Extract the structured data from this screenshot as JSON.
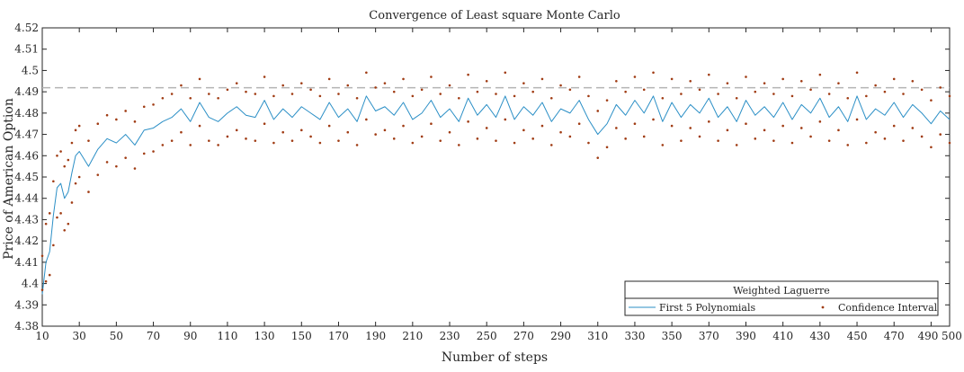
{
  "chart_data": {
    "type": "line",
    "title": "Convergence of Least square Monte Carlo",
    "xlabel": "Number of steps",
    "ylabel": "Price of American Option",
    "xlim": [
      10,
      500
    ],
    "ylim": [
      4.38,
      4.52
    ],
    "xticks": [
      10,
      30,
      50,
      70,
      90,
      110,
      130,
      150,
      170,
      190,
      210,
      230,
      250,
      270,
      290,
      310,
      330,
      350,
      370,
      390,
      410,
      430,
      450,
      470,
      490,
      500
    ],
    "yticks": [
      4.38,
      4.39,
      4.4,
      4.41,
      4.42,
      4.43,
      4.44,
      4.45,
      4.46,
      4.47,
      4.48,
      4.49,
      4.5,
      4.51,
      4.52
    ],
    "grid": false,
    "reference_line": {
      "y": 4.4919,
      "style": "dashed",
      "color": "#b4b4b4"
    },
    "legend": {
      "title": "Weighted Laguerre",
      "placement": "bottom-right",
      "entries": [
        "First 5 Polynomials",
        "Confidence Interval"
      ]
    },
    "series": [
      {
        "name": "First 5 Polynomials",
        "style": "line",
        "color": "#2b8fc6",
        "x": [
          10,
          12,
          14,
          16,
          18,
          20,
          22,
          24,
          26,
          28,
          30,
          35,
          40,
          45,
          50,
          55,
          60,
          65,
          70,
          75,
          80,
          85,
          90,
          95,
          100,
          105,
          110,
          115,
          120,
          125,
          130,
          135,
          140,
          145,
          150,
          155,
          160,
          165,
          170,
          175,
          180,
          185,
          190,
          195,
          200,
          205,
          210,
          215,
          220,
          225,
          230,
          235,
          240,
          245,
          250,
          255,
          260,
          265,
          270,
          275,
          280,
          285,
          290,
          295,
          300,
          305,
          310,
          315,
          320,
          325,
          330,
          335,
          340,
          345,
          350,
          355,
          360,
          365,
          370,
          375,
          380,
          385,
          390,
          395,
          400,
          405,
          410,
          415,
          420,
          425,
          430,
          435,
          440,
          445,
          450,
          455,
          460,
          465,
          470,
          475,
          480,
          485,
          490,
          495,
          500
        ],
        "y": [
          4.395,
          4.41,
          4.415,
          4.432,
          4.445,
          4.447,
          4.44,
          4.443,
          4.452,
          4.46,
          4.462,
          4.455,
          4.463,
          4.468,
          4.466,
          4.47,
          4.465,
          4.472,
          4.473,
          4.476,
          4.478,
          4.482,
          4.476,
          4.485,
          4.478,
          4.476,
          4.48,
          4.483,
          4.479,
          4.478,
          4.486,
          4.477,
          4.482,
          4.478,
          4.483,
          4.48,
          4.477,
          4.485,
          4.478,
          4.482,
          4.476,
          4.488,
          4.481,
          4.483,
          4.479,
          4.485,
          4.477,
          4.48,
          4.486,
          4.478,
          4.482,
          4.476,
          4.487,
          4.479,
          4.484,
          4.478,
          4.488,
          4.477,
          4.483,
          4.479,
          4.485,
          4.476,
          4.482,
          4.48,
          4.486,
          4.477,
          4.47,
          4.475,
          4.484,
          4.479,
          4.486,
          4.48,
          4.488,
          4.476,
          4.485,
          4.478,
          4.484,
          4.48,
          4.487,
          4.478,
          4.483,
          4.476,
          4.486,
          4.479,
          4.483,
          4.478,
          4.485,
          4.477,
          4.484,
          4.48,
          4.487,
          4.478,
          4.483,
          4.476,
          4.488,
          4.477,
          4.482,
          4.479,
          4.485,
          4.478,
          4.484,
          4.48,
          4.475,
          4.481,
          4.477
        ]
      },
      {
        "name": "Confidence Interval",
        "style": "markers",
        "color": "#a03c14",
        "x": [
          10,
          12,
          14,
          16,
          18,
          20,
          22,
          24,
          26,
          28,
          30,
          35,
          40,
          45,
          50,
          55,
          60,
          65,
          70,
          75,
          80,
          85,
          90,
          95,
          100,
          105,
          110,
          115,
          120,
          125,
          130,
          135,
          140,
          145,
          150,
          155,
          160,
          165,
          170,
          175,
          180,
          185,
          190,
          195,
          200,
          205,
          210,
          215,
          220,
          225,
          230,
          235,
          240,
          245,
          250,
          255,
          260,
          265,
          270,
          275,
          280,
          285,
          290,
          295,
          300,
          305,
          310,
          315,
          320,
          325,
          330,
          335,
          340,
          345,
          350,
          355,
          360,
          365,
          370,
          375,
          380,
          385,
          390,
          395,
          400,
          405,
          410,
          415,
          420,
          425,
          430,
          435,
          440,
          445,
          450,
          455,
          460,
          465,
          470,
          475,
          480,
          485,
          490,
          495,
          500,
          10,
          12,
          14,
          16,
          18,
          20,
          22,
          24,
          26,
          28,
          30,
          35,
          40,
          45,
          50,
          55,
          60,
          65,
          70,
          75,
          80,
          85,
          90,
          95,
          100,
          105,
          110,
          115,
          120,
          125,
          130,
          135,
          140,
          145,
          150,
          155,
          160,
          165,
          170,
          175,
          180,
          185,
          190,
          195,
          200,
          205,
          210,
          215,
          220,
          225,
          230,
          235,
          240,
          245,
          250,
          255,
          260,
          265,
          270,
          275,
          280,
          285,
          290,
          295,
          300,
          305,
          310,
          315,
          320,
          325,
          330,
          335,
          340,
          345,
          350,
          355,
          360,
          365,
          370,
          375,
          380,
          385,
          390,
          395,
          400,
          405,
          410,
          415,
          420,
          425,
          430,
          435,
          440,
          445,
          450,
          455,
          460,
          465,
          470,
          475,
          480,
          485,
          490,
          495,
          500
        ],
        "y": [
          4.413,
          4.428,
          4.433,
          4.448,
          4.46,
          4.462,
          4.455,
          4.458,
          4.466,
          4.472,
          4.474,
          4.467,
          4.475,
          4.479,
          4.477,
          4.481,
          4.476,
          4.483,
          4.484,
          4.487,
          4.489,
          4.493,
          4.487,
          4.496,
          4.489,
          4.487,
          4.491,
          4.494,
          4.49,
          4.489,
          4.497,
          4.488,
          4.493,
          4.489,
          4.494,
          4.491,
          4.488,
          4.496,
          4.489,
          4.493,
          4.487,
          4.499,
          4.492,
          4.494,
          4.49,
          4.496,
          4.488,
          4.491,
          4.497,
          4.489,
          4.493,
          4.487,
          4.498,
          4.49,
          4.495,
          4.489,
          4.499,
          4.488,
          4.494,
          4.49,
          4.496,
          4.487,
          4.493,
          4.491,
          4.497,
          4.488,
          4.481,
          4.486,
          4.495,
          4.49,
          4.497,
          4.491,
          4.499,
          4.487,
          4.496,
          4.489,
          4.495,
          4.491,
          4.498,
          4.489,
          4.494,
          4.487,
          4.497,
          4.49,
          4.494,
          4.489,
          4.496,
          4.488,
          4.495,
          4.491,
          4.498,
          4.489,
          4.494,
          4.487,
          4.499,
          4.488,
          4.493,
          4.49,
          4.496,
          4.489,
          4.495,
          4.491,
          4.486,
          4.492,
          4.488,
          4.397,
          4.401,
          4.404,
          4.418,
          4.431,
          4.433,
          4.425,
          4.428,
          4.438,
          4.447,
          4.45,
          4.443,
          4.451,
          4.457,
          4.455,
          4.459,
          4.454,
          4.461,
          4.462,
          4.465,
          4.467,
          4.471,
          4.465,
          4.474,
          4.467,
          4.465,
          4.469,
          4.472,
          4.468,
          4.467,
          4.475,
          4.466,
          4.471,
          4.467,
          4.472,
          4.469,
          4.466,
          4.474,
          4.467,
          4.471,
          4.465,
          4.477,
          4.47,
          4.472,
          4.468,
          4.474,
          4.466,
          4.469,
          4.475,
          4.467,
          4.471,
          4.465,
          4.476,
          4.468,
          4.473,
          4.467,
          4.477,
          4.466,
          4.472,
          4.468,
          4.474,
          4.465,
          4.471,
          4.469,
          4.475,
          4.466,
          4.459,
          4.464,
          4.473,
          4.468,
          4.475,
          4.469,
          4.477,
          4.465,
          4.474,
          4.467,
          4.473,
          4.469,
          4.476,
          4.467,
          4.472,
          4.465,
          4.475,
          4.468,
          4.472,
          4.467,
          4.474,
          4.466,
          4.473,
          4.469,
          4.476,
          4.467,
          4.472,
          4.465,
          4.477,
          4.466,
          4.471,
          4.468,
          4.474,
          4.467,
          4.473,
          4.469,
          4.464,
          4.47,
          4.466
        ]
      }
    ]
  }
}
